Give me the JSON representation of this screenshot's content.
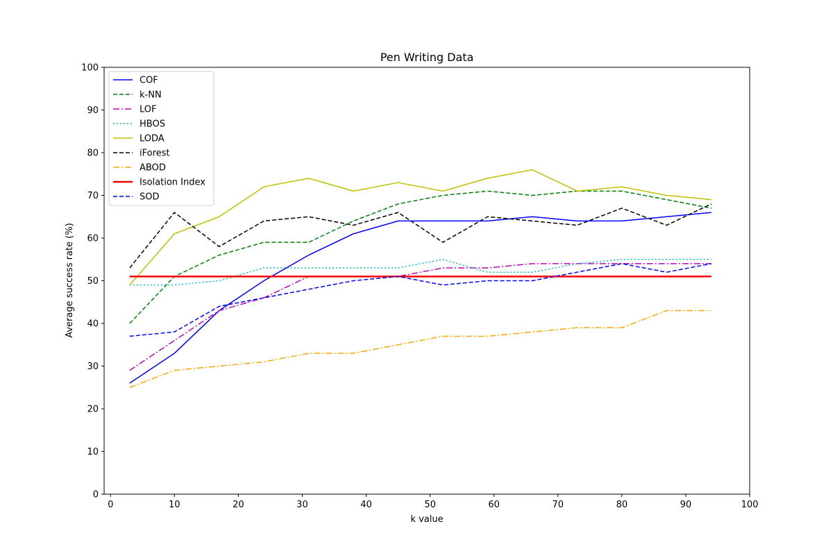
{
  "chart_data": {
    "type": "line",
    "title": "Pen Writing Data",
    "xlabel": "k value",
    "ylabel": "Average success rate (%)",
    "xlim": [
      -1,
      100
    ],
    "ylim": [
      0,
      100
    ],
    "xticks": [
      0,
      10,
      20,
      30,
      40,
      50,
      60,
      70,
      80,
      90,
      100
    ],
    "yticks": [
      0,
      10,
      20,
      30,
      40,
      50,
      60,
      70,
      80,
      90,
      100
    ],
    "grid": false,
    "legend_position": "top-left",
    "x": [
      3,
      10,
      17,
      24,
      31,
      38,
      45,
      52,
      59,
      66,
      73,
      80,
      87,
      94
    ],
    "series": [
      {
        "name": "COF",
        "color": "#0000ff",
        "style": "solid",
        "values": [
          26,
          33,
          43,
          50,
          56,
          61,
          64,
          64,
          64,
          65,
          64,
          64,
          65,
          66
        ]
      },
      {
        "name": "k-NN",
        "color": "#008000",
        "style": "dashed",
        "values": [
          40,
          51,
          56,
          59,
          59,
          64,
          68,
          70,
          71,
          70,
          71,
          71,
          69,
          67
        ]
      },
      {
        "name": "LOF",
        "color": "#bf00bf",
        "style": "dashdot",
        "values": [
          29,
          36,
          43,
          46,
          51,
          51,
          51,
          53,
          53,
          54,
          54,
          54,
          54,
          54
        ]
      },
      {
        "name": "HBOS",
        "color": "#00bfbf",
        "style": "dotted",
        "values": [
          49,
          49,
          50,
          53,
          53,
          53,
          53,
          55,
          52,
          52,
          54,
          55,
          55,
          55
        ]
      },
      {
        "name": "LODA",
        "color": "#bfbf00",
        "style": "solid",
        "values": [
          49,
          61,
          65,
          72,
          74,
          71,
          73,
          71,
          74,
          76,
          71,
          72,
          70,
          69
        ]
      },
      {
        "name": "iForest",
        "color": "#000000",
        "style": "dashed",
        "values": [
          53,
          66,
          58,
          64,
          65,
          63,
          66,
          59,
          65,
          64,
          63,
          67,
          63,
          68
        ]
      },
      {
        "name": "ABOD",
        "color": "#ffa500",
        "style": "dashdot",
        "values": [
          25,
          29,
          30,
          31,
          33,
          33,
          35,
          37,
          37,
          38,
          39,
          39,
          43,
          43
        ]
      },
      {
        "name": "Isolation Index",
        "color": "#ff0000",
        "style": "solid-thick",
        "values": [
          51,
          51,
          51,
          51,
          51,
          51,
          51,
          51,
          51,
          51,
          51,
          51,
          51,
          51
        ]
      },
      {
        "name": "SOD",
        "color": "#0000ff",
        "style": "dashed",
        "values": [
          37,
          38,
          44,
          46,
          48,
          50,
          51,
          49,
          50,
          50,
          52,
          54,
          52,
          54
        ]
      }
    ]
  }
}
